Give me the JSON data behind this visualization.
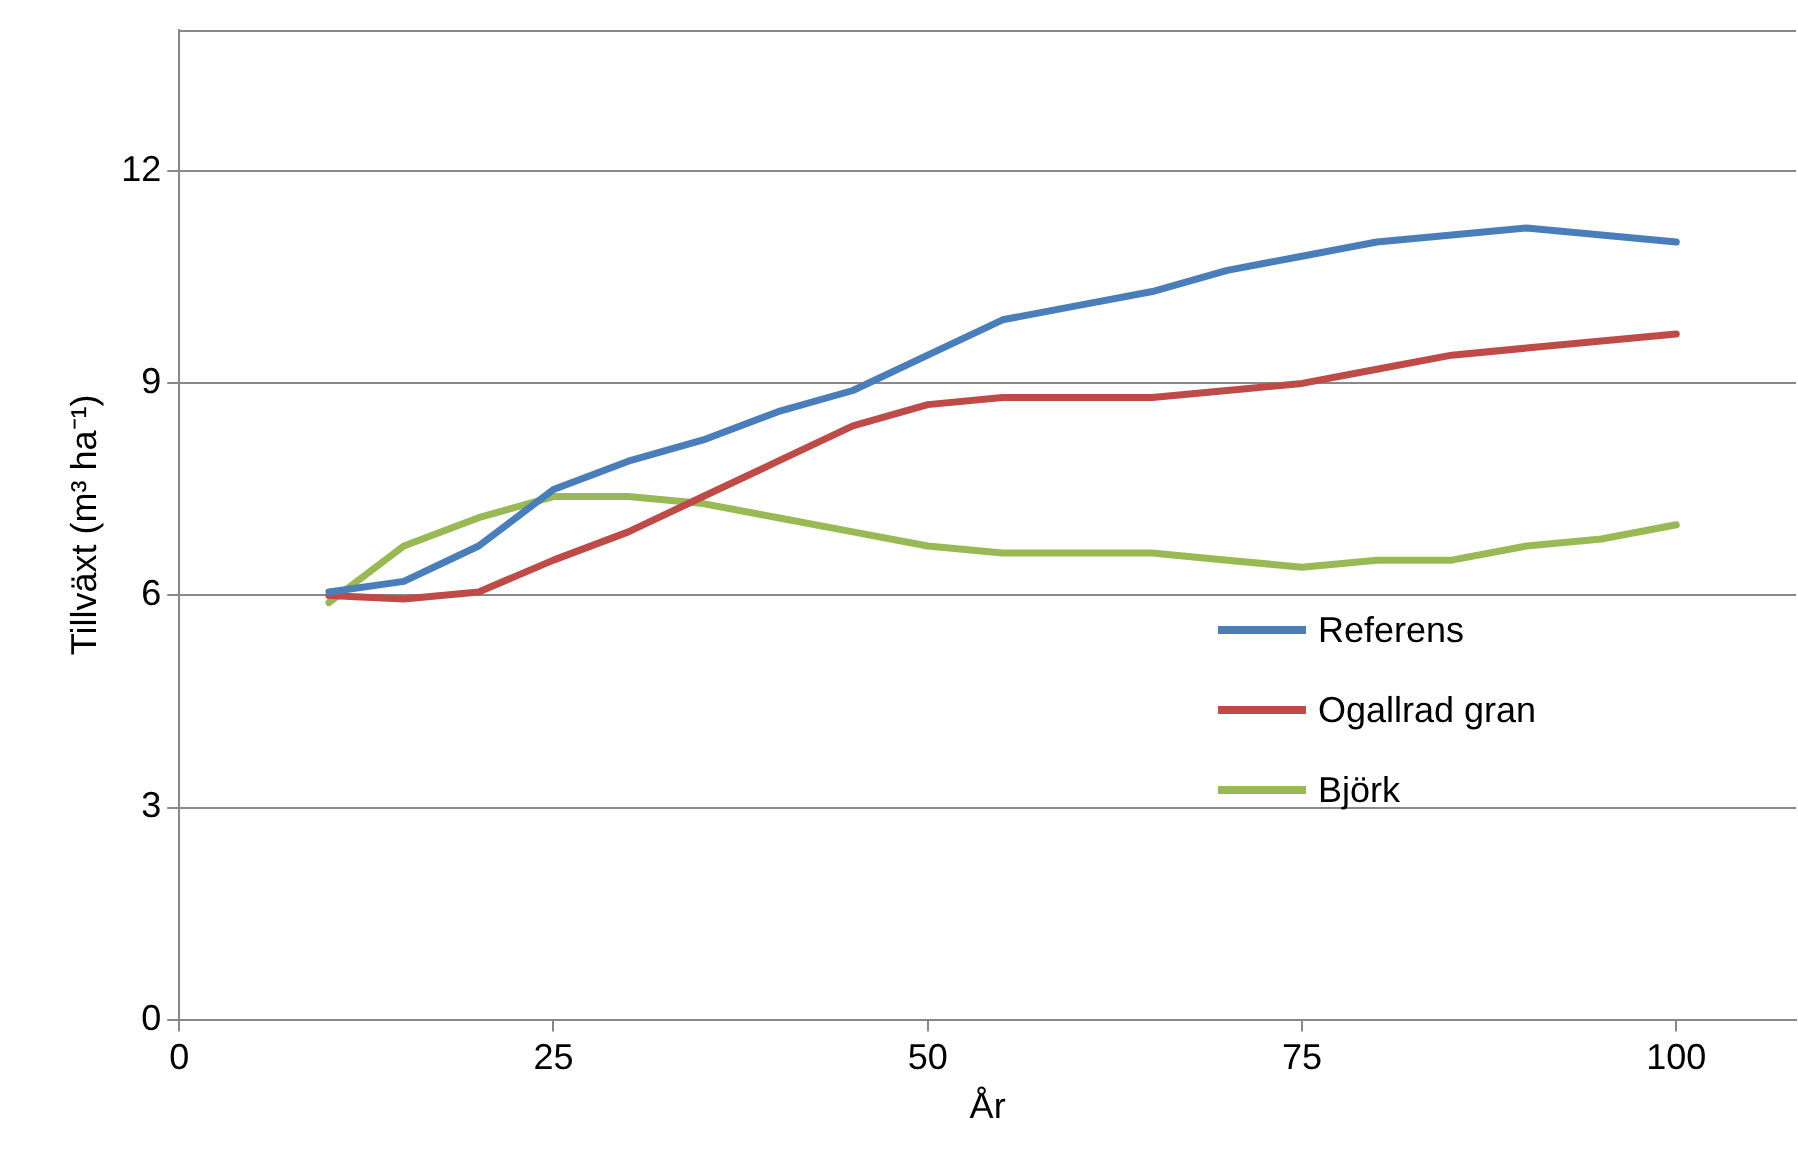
{
  "chart_data": {
    "type": "line",
    "xlabel": "År",
    "ylabel": "Tillväxt (m³ ha⁻¹)",
    "x": [
      10,
      15,
      20,
      25,
      30,
      35,
      40,
      45,
      50,
      55,
      60,
      65,
      70,
      75,
      80,
      85,
      90,
      95,
      100
    ],
    "series": [
      {
        "name": "Referens",
        "color": "#4a7ebb",
        "values": [
          6.05,
          6.2,
          6.7,
          7.5,
          7.9,
          8.2,
          8.6,
          8.9,
          9.4,
          9.9,
          10.1,
          10.3,
          10.6,
          10.8,
          11.0,
          11.1,
          11.2,
          11.1,
          11.0
        ]
      },
      {
        "name": "Ogallrad gran",
        "color": "#be4b48",
        "values": [
          6.0,
          5.95,
          6.05,
          6.5,
          6.9,
          7.4,
          7.9,
          8.4,
          8.7,
          8.8,
          8.8,
          8.8,
          8.9,
          9.0,
          9.2,
          9.4,
          9.5,
          9.6,
          9.7
        ]
      },
      {
        "name": "Björk",
        "color": "#98b954",
        "values": [
          5.9,
          6.7,
          7.1,
          7.4,
          7.4,
          7.3,
          7.1,
          6.9,
          6.7,
          6.6,
          6.6,
          6.6,
          6.5,
          6.4,
          6.5,
          6.5,
          6.7,
          6.8,
          7.0
        ]
      }
    ],
    "xlim": [
      0,
      108
    ],
    "xticks": [
      0,
      25,
      50,
      75,
      100
    ],
    "ylim": [
      0,
      14
    ],
    "yticks": [
      0,
      3,
      6,
      9,
      12
    ],
    "grid": "y",
    "legend": "right",
    "marker": "none",
    "line_style": "solid"
  }
}
